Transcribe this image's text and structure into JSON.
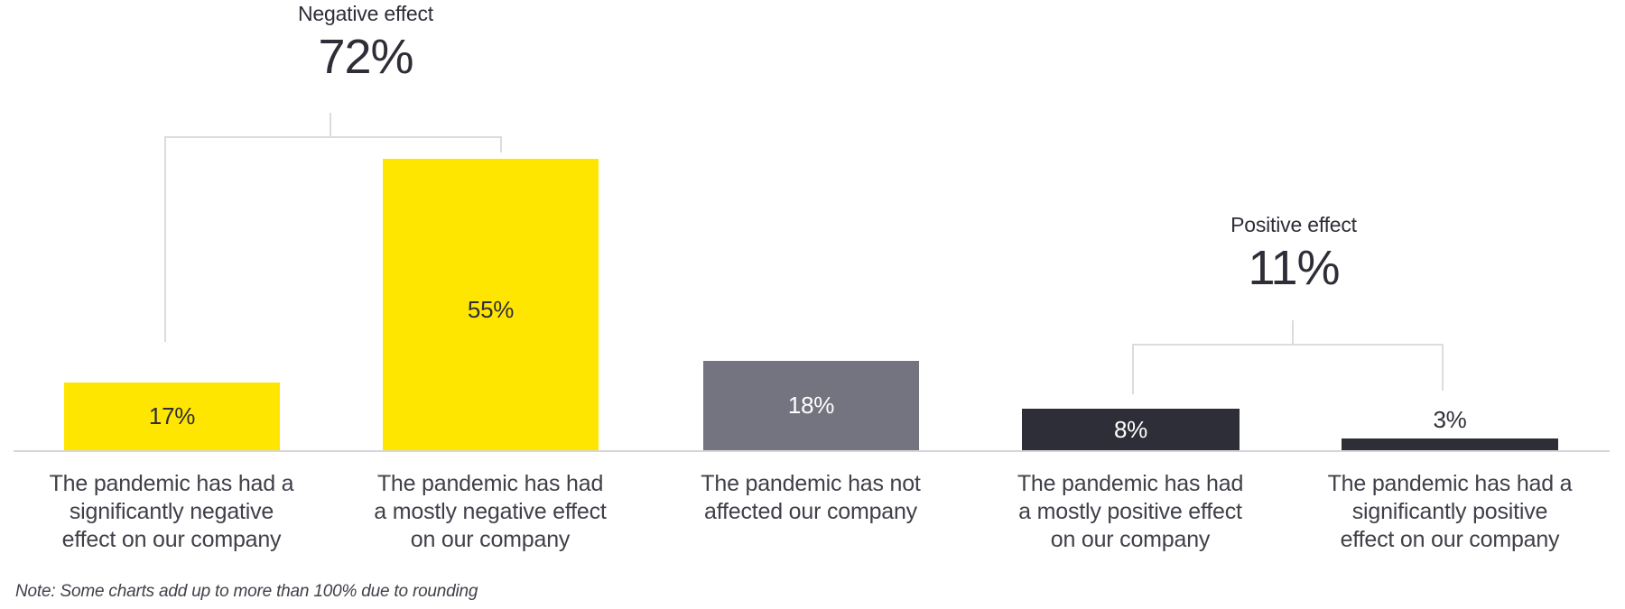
{
  "chart_data": {
    "type": "bar",
    "unit": "%",
    "title": "",
    "xlabel": "",
    "ylabel": "",
    "ylim": [
      0,
      60
    ],
    "grid": false,
    "legend": false,
    "categories": [
      "The pandemic has had a significantly negative effect on our company",
      "The pandemic has had a mostly negative effect on our company",
      "The pandemic has not affected our company",
      "The pandemic has had a mostly positive effect on our company",
      "The pandemic has had a significantly positive effect on our company"
    ],
    "values": [
      17,
      55,
      18,
      8,
      3
    ],
    "bars": [
      {
        "value": 17,
        "value_label": "17%",
        "color": "#FFE600",
        "value_color": "#2E2E38",
        "label_lines": [
          "The pandemic has had a",
          "significantly negative",
          "effect on our company"
        ]
      },
      {
        "value": 55,
        "value_label": "55%",
        "color": "#FFE600",
        "value_color": "#2E2E38",
        "label_lines": [
          "The pandemic has had",
          "a mostly negative effect",
          "on our company"
        ]
      },
      {
        "value": 18,
        "value_label": "18%",
        "color": "#747480",
        "value_color": "#FFFFFF",
        "label_lines": [
          "The pandemic has not",
          "affected our company"
        ]
      },
      {
        "value": 8,
        "value_label": "8%",
        "color": "#2E2E38",
        "value_color": "#FFFFFF",
        "label_lines": [
          "The pandemic has had",
          "a mostly positive effect",
          "on our company"
        ]
      },
      {
        "value": 3,
        "value_label": "3%",
        "color": "#2E2E38",
        "value_color": "#2E2E38",
        "label_lines": [
          "The pandemic has had a",
          "significantly positive",
          "effect on our company"
        ]
      }
    ],
    "groups": [
      {
        "label": "Negative effect",
        "value": "72%",
        "bar_indexes": [
          0,
          1
        ]
      },
      {
        "label": "Positive effect",
        "value": "11%",
        "bar_indexes": [
          3,
          4
        ]
      }
    ],
    "note": "Note: Some charts add up to more than 100% due to rounding",
    "colors": {
      "yellow": "#FFE600",
      "gray": "#747480",
      "dark": "#2E2E38",
      "bracket_line": "#DCDCDF",
      "baseline": "#D6D6D9",
      "label_text": "#404049",
      "header_text": "#2E2E38",
      "background": "#FFFFFF"
    }
  }
}
